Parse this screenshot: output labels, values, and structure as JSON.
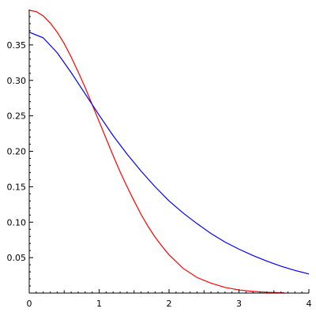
{
  "chart_data": {
    "type": "line",
    "title": "",
    "xlabel": "",
    "ylabel": "",
    "xlim": [
      0,
      4
    ],
    "ylim": [
      0,
      0.4
    ],
    "grid": false,
    "x_ticks": [
      {
        "value": 0,
        "label": "0"
      },
      {
        "value": 1,
        "label": "1"
      },
      {
        "value": 2,
        "label": "2"
      },
      {
        "value": 3,
        "label": "3"
      },
      {
        "value": 4,
        "label": "4"
      }
    ],
    "y_ticks": [
      {
        "value": 0.05,
        "label": "0.05"
      },
      {
        "value": 0.1,
        "label": "0.10"
      },
      {
        "value": 0.15,
        "label": "0.15"
      },
      {
        "value": 0.2,
        "label": "0.20"
      },
      {
        "value": 0.25,
        "label": "0.25"
      },
      {
        "value": 0.3,
        "label": "0.30"
      },
      {
        "value": 0.35,
        "label": "0.35"
      }
    ],
    "series": [
      {
        "color": "#ff0000",
        "x": [
          0,
          0.1,
          0.2,
          0.3,
          0.4,
          0.5,
          0.6,
          0.7,
          0.8,
          0.9,
          1.0,
          1.1,
          1.2,
          1.3,
          1.4,
          1.5,
          1.6,
          1.7,
          1.8,
          1.9,
          2.0,
          2.2,
          2.4,
          2.6,
          2.8,
          3.0,
          3.2,
          3.4,
          3.6,
          3.65
        ],
        "y": [
          0.399,
          0.397,
          0.391,
          0.381,
          0.368,
          0.352,
          0.333,
          0.312,
          0.29,
          0.266,
          0.242,
          0.218,
          0.194,
          0.171,
          0.15,
          0.13,
          0.111,
          0.094,
          0.079,
          0.066,
          0.054,
          0.035,
          0.022,
          0.014,
          0.008,
          0.0044,
          0.0024,
          0.0012,
          0.0006,
          0.0005
        ]
      },
      {
        "color": "#0000ff",
        "x": [
          0,
          0.2,
          0.4,
          0.6,
          0.8,
          1.0,
          1.2,
          1.4,
          1.6,
          1.8,
          2.0,
          2.2,
          2.4,
          2.6,
          2.8,
          3.0,
          3.2,
          3.4,
          3.6,
          3.8,
          4.0
        ],
        "y": [
          0.368,
          0.36,
          0.339,
          0.311,
          0.281,
          0.251,
          0.222,
          0.196,
          0.172,
          0.15,
          0.13,
          0.113,
          0.098,
          0.084,
          0.072,
          0.062,
          0.053,
          0.045,
          0.038,
          0.032,
          0.027
        ]
      }
    ]
  }
}
